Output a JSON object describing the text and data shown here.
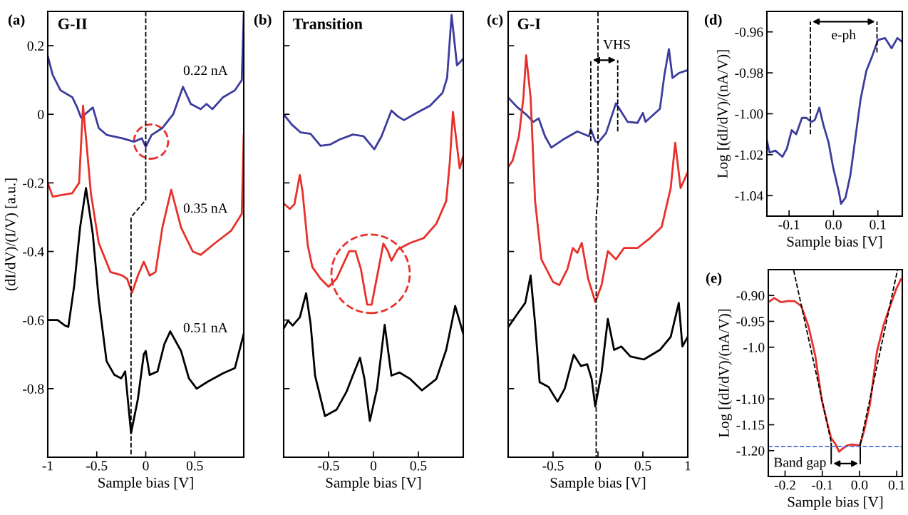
{
  "chart_data": [
    {
      "type": "line",
      "title": "(a)",
      "subtitle": "G-II",
      "xlabel": "Sample bias [V]",
      "ylabel": "(dI/dV)/(I/V) [a.u.]",
      "xlim": [
        -1,
        1
      ],
      "ylim": [
        -1.0,
        0.3
      ],
      "xticks": [
        -1,
        -0.5,
        0,
        0.5
      ],
      "yticks": [
        -0.8,
        -0.6,
        -0.4,
        -0.2,
        0,
        0.2
      ],
      "series": [
        {
          "color": "#3c3c9c",
          "x": [
            -1,
            -0.95,
            -0.87,
            -0.75,
            -0.7,
            -0.66,
            -0.54,
            -0.48,
            -0.4,
            -0.24,
            -0.12,
            -0.04,
            0,
            0.06,
            0.17,
            0.28,
            0.38,
            0.46,
            0.56,
            0.62,
            0.68,
            0.79,
            0.91,
            0.98,
            1.0
          ],
          "values": [
            0.17,
            0.115,
            0.07,
            0.05,
            0.02,
            -0.01,
            0.02,
            -0.04,
            -0.06,
            -0.07,
            -0.08,
            -0.07,
            -0.095,
            -0.06,
            -0.04,
            0,
            0.08,
            0.03,
            0.015,
            0.03,
            0.015,
            0.05,
            0.07,
            0.1,
            0.29
          ]
        },
        {
          "color": "#e8302a",
          "x": [
            -1,
            -0.95,
            -0.75,
            -0.68,
            -0.64,
            -0.6,
            -0.56,
            -0.48,
            -0.36,
            -0.24,
            -0.19,
            -0.14,
            -0.08,
            -0.02,
            0.04,
            0.1,
            0.17,
            0.26,
            0.36,
            0.48,
            0.56,
            0.71,
            0.87,
            0.98,
            1.0
          ],
          "values": [
            -0.2,
            -0.24,
            -0.23,
            -0.2,
            0.025,
            -0.1,
            -0.23,
            -0.375,
            -0.46,
            -0.47,
            -0.48,
            -0.52,
            -0.47,
            -0.43,
            -0.47,
            -0.46,
            -0.33,
            -0.22,
            -0.33,
            -0.4,
            -0.41,
            -0.375,
            -0.34,
            -0.29,
            -0.06
          ]
        },
        {
          "color": "#000000",
          "x": [
            -1,
            -0.9,
            -0.83,
            -0.79,
            -0.73,
            -0.67,
            -0.61,
            -0.54,
            -0.48,
            -0.4,
            -0.32,
            -0.25,
            -0.21,
            -0.15,
            -0.08,
            -0.02,
            0.0,
            0.04,
            0.12,
            0.19,
            0.25,
            0.36,
            0.44,
            0.52,
            0.63,
            0.79,
            0.91,
            1.0
          ],
          "values": [
            -0.6,
            -0.6,
            -0.615,
            -0.62,
            -0.5,
            -0.33,
            -0.215,
            -0.35,
            -0.54,
            -0.72,
            -0.76,
            -0.77,
            -0.75,
            -0.93,
            -0.83,
            -0.7,
            -0.69,
            -0.76,
            -0.75,
            -0.67,
            -0.633,
            -0.69,
            -0.77,
            -0.8,
            -0.78,
            -0.755,
            -0.74,
            -0.64
          ]
        },
        {
          "color": "#000000",
          "line_style": "dashed",
          "x": [
            0,
            0,
            -0.15,
            -0.15
          ],
          "values": [
            0.3,
            -0.25,
            -0.3,
            -1.0
          ]
        }
      ],
      "annotations": [
        "0.22 nA",
        "0.35 nA",
        "0.51 nA"
      ]
    },
    {
      "type": "line",
      "title": "(b)",
      "subtitle": "Transition",
      "xlabel": "Sample bias [V]",
      "xlim": [
        -1,
        1
      ],
      "ylim": [
        -1.0,
        0.3
      ],
      "xticks": [
        -0.5,
        0,
        0.5
      ],
      "yticks": [
        -0.8,
        -0.6,
        -0.4,
        -0.2,
        0,
        0.2
      ],
      "tick_labels": "x",
      "series": [
        {
          "color": "#3c3c9c",
          "x": [
            -1,
            -0.91,
            -0.81,
            -0.7,
            -0.59,
            -0.48,
            -0.38,
            -0.23,
            -0.11,
            -0.05,
            0.01,
            0.09,
            0.2,
            0.27,
            0.34,
            0.48,
            0.63,
            0.77,
            0.82,
            0.87,
            0.93,
            1.0
          ],
          "values": [
            0,
            -0.03,
            -0.053,
            -0.057,
            -0.092,
            -0.088,
            -0.074,
            -0.059,
            -0.064,
            -0.083,
            -0.102,
            -0.064,
            0.011,
            -0.006,
            -0.017,
            0.004,
            0.025,
            0.063,
            0.106,
            0.29,
            0.143,
            0.162
          ]
        },
        {
          "color": "#e8302a",
          "x": [
            -1,
            -0.93,
            -0.88,
            -0.82,
            -0.79,
            -0.73,
            -0.68,
            -0.59,
            -0.5,
            -0.41,
            -0.27,
            -0.2,
            -0.14,
            -0.07,
            -0.02,
            0.05,
            0.11,
            0.16,
            0.2,
            0.27,
            0.41,
            0.56,
            0.7,
            0.81,
            0.85,
            0.885,
            0.96,
            1.0
          ],
          "values": [
            -0.26,
            -0.276,
            -0.262,
            -0.177,
            -0.225,
            -0.385,
            -0.446,
            -0.479,
            -0.503,
            -0.479,
            -0.399,
            -0.399,
            -0.451,
            -0.555,
            -0.555,
            -0.46,
            -0.377,
            -0.399,
            -0.427,
            -0.394,
            -0.375,
            -0.361,
            -0.319,
            -0.253,
            -0.14,
            0.007,
            -0.158,
            -0.121
          ]
        },
        {
          "color": "#000000",
          "x": [
            -1,
            -0.95,
            -0.9,
            -0.82,
            -0.75,
            -0.7,
            -0.65,
            -0.54,
            -0.41,
            -0.3,
            -0.23,
            -0.15,
            -0.1,
            -0.04,
            0.04,
            0.125,
            0.2,
            0.29,
            0.41,
            0.54,
            0.7,
            0.81,
            0.91,
            1.0
          ],
          "values": [
            -0.625,
            -0.602,
            -0.616,
            -0.592,
            -0.522,
            -0.611,
            -0.762,
            -0.88,
            -0.861,
            -0.809,
            -0.762,
            -0.71,
            -0.772,
            -0.894,
            -0.8,
            -0.614,
            -0.762,
            -0.753,
            -0.772,
            -0.805,
            -0.772,
            -0.687,
            -0.559,
            -0.64
          ]
        }
      ]
    },
    {
      "type": "line",
      "title": "(c)",
      "subtitle": "G-I",
      "xlabel": "Sample bias [V]",
      "xlim": [
        -1,
        1
      ],
      "ylim": [
        -1.0,
        0.3
      ],
      "xticks": [
        -0.5,
        0,
        0.5,
        1
      ],
      "yticks": [
        -0.8,
        -0.6,
        -0.4,
        -0.2,
        0,
        0.2
      ],
      "tick_labels": "x",
      "series": [
        {
          "color": "#3c3c9c",
          "x": [
            -1,
            -0.9,
            -0.79,
            -0.72,
            -0.66,
            -0.59,
            -0.52,
            -0.39,
            -0.23,
            -0.1,
            -0.08,
            -0.03,
            0,
            0.09,
            0.2,
            0.33,
            0.44,
            0.5,
            0.53,
            0.69,
            0.74,
            0.79,
            0.83,
            0.9,
            1.0
          ],
          "values": [
            0.049,
            0.021,
            -0.003,
            -0.022,
            -0.012,
            -0.064,
            -0.097,
            -0.074,
            -0.05,
            -0.064,
            -0.043,
            -0.078,
            -0.083,
            -0.055,
            0.032,
            -0.022,
            -0.025,
            0.004,
            -0.022,
            0.016,
            0.115,
            0.19,
            0.106,
            0.12,
            0.129
          ]
        },
        {
          "color": "#e8302a",
          "x": [
            -1,
            -0.95,
            -0.88,
            -0.83,
            -0.8,
            -0.75,
            -0.7,
            -0.63,
            -0.5,
            -0.43,
            -0.34,
            -0.28,
            -0.23,
            -0.18,
            -0.11,
            -0.03,
            0.04,
            0.11,
            0.2,
            0.29,
            0.44,
            0.58,
            0.71,
            0.81,
            0.86,
            0.92,
            1.0
          ],
          "values": [
            -0.154,
            -0.135,
            -0.064,
            0.049,
            0.172,
            0.049,
            -0.253,
            -0.423,
            -0.489,
            -0.498,
            -0.451,
            -0.39,
            -0.404,
            -0.375,
            -0.479,
            -0.547,
            -0.498,
            -0.399,
            -0.423,
            -0.39,
            -0.39,
            -0.361,
            -0.328,
            -0.215,
            -0.083,
            -0.215,
            -0.168
          ]
        },
        {
          "color": "#000000",
          "x": [
            -1,
            -0.9,
            -0.81,
            -0.75,
            -0.7,
            -0.65,
            -0.55,
            -0.45,
            -0.37,
            -0.27,
            -0.19,
            -0.12,
            -0.07,
            -0.03,
            0.04,
            0.11,
            0.18,
            0.26,
            0.36,
            0.51,
            0.69,
            0.81,
            0.9,
            0.94,
            1.0
          ],
          "values": [
            -0.621,
            -0.583,
            -0.55,
            -0.47,
            -0.611,
            -0.781,
            -0.795,
            -0.838,
            -0.8,
            -0.701,
            -0.734,
            -0.729,
            -0.772,
            -0.852,
            -0.753,
            -0.597,
            -0.687,
            -0.677,
            -0.706,
            -0.715,
            -0.687,
            -0.649,
            -0.55,
            -0.677,
            -0.649
          ]
        },
        {
          "color": "#000000",
          "line_style": "dashed",
          "x": [
            0,
            0,
            -0.02,
            -0.02
          ],
          "values": [
            0.3,
            -0.23,
            -0.3,
            -1.0
          ]
        },
        {
          "color": "#000000",
          "line_style": "dashed",
          "x": [
            -0.08,
            -0.08
          ],
          "values": [
            -0.078,
            0.158
          ]
        },
        {
          "color": "#000000",
          "line_style": "dashed",
          "x": [
            0.22,
            0.22
          ],
          "values": [
            -0.05,
            0.158
          ]
        }
      ],
      "annotations": [
        "VHS"
      ]
    },
    {
      "type": "line",
      "title": "(d)",
      "xlabel": "Sample bias [V]",
      "ylabel": "Log [(dI/dV)/(nA/V)]",
      "xlim": [
        -0.15,
        0.155
      ],
      "ylim": [
        -1.05,
        -0.95
      ],
      "xticks": [
        -0.1,
        {
          "value": 0,
          "label": "0.0"
        },
        0.1
      ],
      "yticks": [
        -1.04,
        -1.02,
        {
          "value": -1.0,
          "label": "-1.00"
        },
        -0.98,
        -0.96
      ],
      "series": [
        {
          "color": "#3c3c9c",
          "x": [
            -0.15,
            -0.144,
            -0.131,
            -0.115,
            -0.105,
            -0.094,
            -0.084,
            -0.071,
            -0.061,
            -0.05,
            -0.042,
            -0.032,
            -0.022,
            -0.011,
            -0.001,
            0.012,
            0.017,
            0.027,
            0.038,
            0.048,
            0.061,
            0.074,
            0.087,
            0.1,
            0.116,
            0.131,
            0.144,
            0.155
          ],
          "values": [
            -1.013,
            -1.019,
            -1.018,
            -1.021,
            -1.017,
            -1.008,
            -1.01,
            -1.002,
            -1.002,
            -1.004,
            -1.003,
            -0.997,
            -1.006,
            -1.014,
            -1.026,
            -1.038,
            -1.044,
            -1.041,
            -1.03,
            -1.014,
            -0.993,
            -0.979,
            -0.972,
            -0.964,
            -0.963,
            -0.968,
            -0.963,
            -0.965
          ]
        },
        {
          "color": "#000000",
          "line_style": "dashed",
          "x": [
            -0.052,
            -0.052
          ],
          "values": [
            -1.01,
            -0.955
          ]
        },
        {
          "color": "#000000",
          "line_style": "dashed",
          "x": [
            0.098,
            0.098
          ],
          "values": [
            -0.97,
            -0.955
          ]
        }
      ],
      "annotations": [
        "e-ph"
      ]
    },
    {
      "type": "line",
      "title": "(e)",
      "xlabel": "Sample bias [V]",
      "ylabel": "Log [(dI/dV)/(nA/V)]",
      "xlim": [
        -0.245,
        0.115
      ],
      "ylim": [
        -1.25,
        -0.85
      ],
      "xticks": [
        -0.2,
        -0.1,
        {
          "value": 0,
          "label": "0.0"
        },
        0.1
      ],
      "yticks": [
        {
          "value": -1.2,
          "label": "-1.20"
        },
        -1.15,
        {
          "value": -1.1,
          "label": "-1.10"
        },
        {
          "value": -1,
          "label": "-1.0"
        },
        -0.95,
        {
          "value": -0.9,
          "label": "-0.90"
        }
      ],
      "series": [
        {
          "color": "#e8302a",
          "x": [
            -0.245,
            -0.229,
            -0.211,
            -0.193,
            -0.174,
            -0.156,
            -0.137,
            -0.119,
            -0.101,
            -0.085,
            -0.076,
            -0.064,
            -0.055,
            -0.045,
            -0.033,
            -0.021,
            0.001,
            0.013,
            0.028,
            0.047,
            0.065,
            0.083,
            0.099,
            0.111
          ],
          "values": [
            -0.913,
            -0.905,
            -0.913,
            -0.911,
            -0.911,
            -0.921,
            -0.96,
            -1.016,
            -1.103,
            -1.151,
            -1.176,
            -1.188,
            -1.202,
            -1.196,
            -1.19,
            -1.188,
            -1.19,
            -1.16,
            -1.111,
            -1.008,
            -0.956,
            -0.919,
            -0.887,
            -0.869
          ]
        },
        {
          "color": "#000000",
          "line_style": "dashed",
          "x": [
            -0.177,
            -0.076
          ],
          "values": [
            -0.851,
            -1.184
          ]
        },
        {
          "color": "#000000",
          "line_style": "dashed",
          "x": [
            0.002,
            0.102
          ],
          "values": [
            -1.188,
            -0.851
          ]
        },
        {
          "color": "#000000",
          "x": [
            -0.076,
            -0.076
          ],
          "values": [
            -1.186,
            -1.225
          ]
        },
        {
          "color": "#000000",
          "x": [
            0.002,
            0.002
          ],
          "values": [
            -1.186,
            -1.225
          ]
        }
      ],
      "ref_lines": [
        {
          "axis": "y",
          "value": -1.192,
          "color": "#4a6fd0",
          "line_style": "dashed"
        }
      ],
      "annotations": [
        "Band gap"
      ]
    }
  ]
}
